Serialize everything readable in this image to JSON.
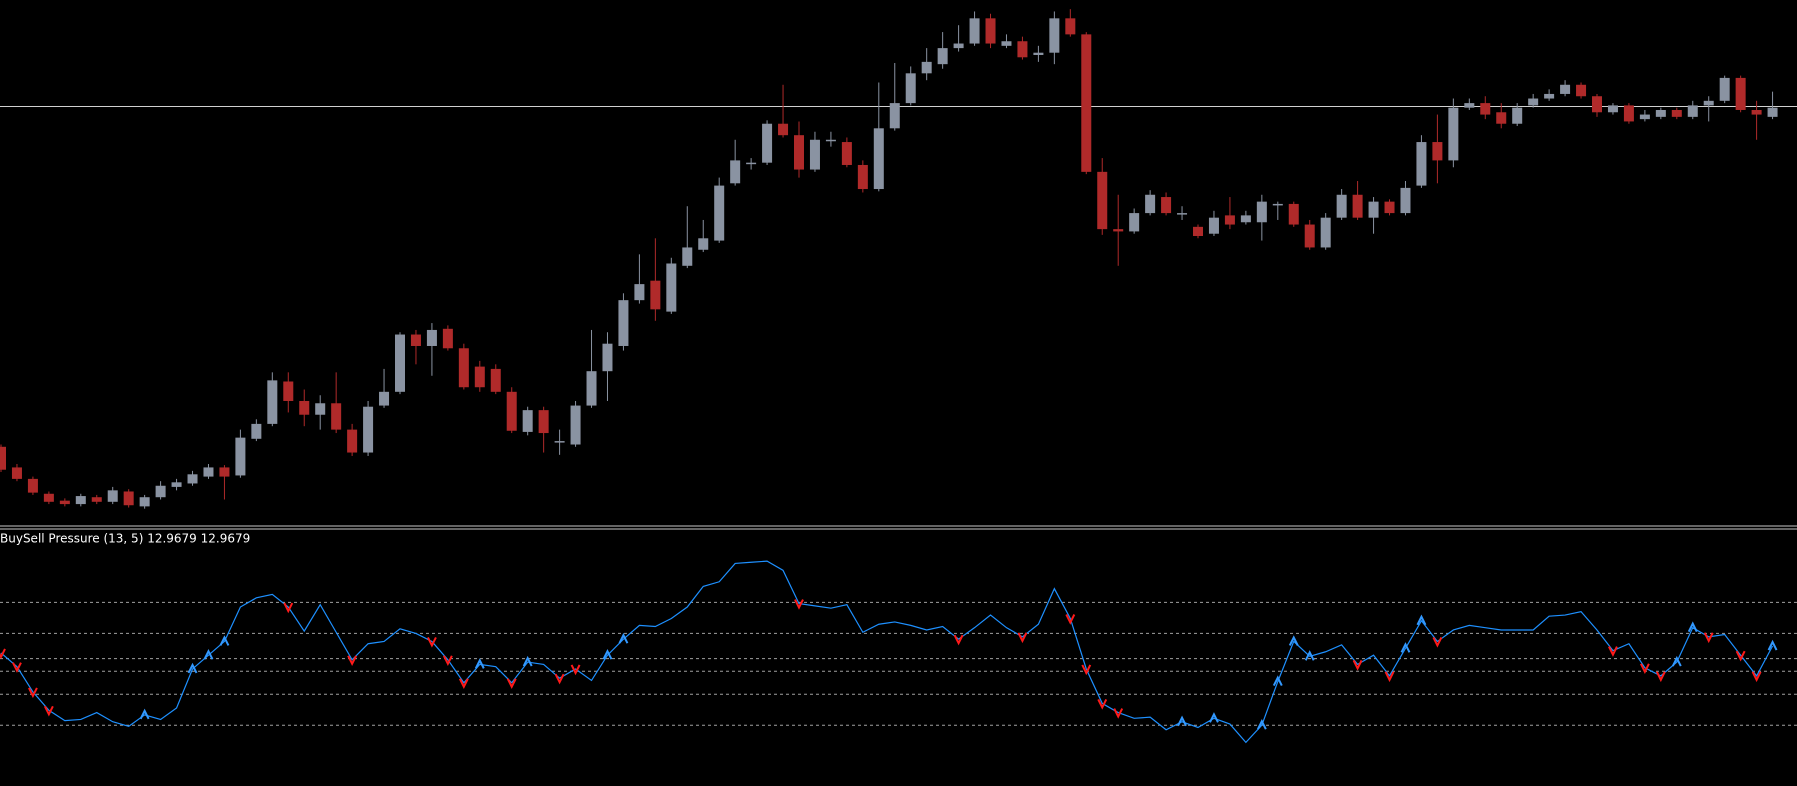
{
  "chart_data": [
    {
      "type": "candlestick",
      "open": [
        70,
        52,
        42,
        29,
        23,
        20,
        26,
        22,
        31,
        18,
        26,
        35,
        38,
        44,
        52,
        45,
        77,
        90,
        127,
        110,
        98,
        108,
        85,
        65,
        106,
        118,
        168,
        158,
        173,
        156,
        140,
        138,
        118,
        83,
        102,
        75,
        72,
        106,
        136,
        158,
        198,
        215,
        188,
        228,
        242,
        250,
        300,
        318,
        318,
        352,
        342,
        312,
        338,
        336,
        316,
        295,
        348,
        370,
        396,
        404,
        418,
        422,
        444,
        420,
        424,
        412,
        414,
        444,
        430,
        310,
        260,
        258,
        274,
        288,
        274,
        262,
        256,
        272,
        266,
        266,
        282,
        282,
        264,
        244,
        270,
        290,
        270,
        284,
        274,
        298,
        336,
        320,
        366,
        370,
        362,
        352,
        368,
        374,
        378,
        386,
        376,
        362,
        368,
        356,
        358,
        364,
        358,
        368,
        372,
        392,
        364,
        358
      ],
      "high": [
        72,
        55,
        44,
        31,
        25,
        29,
        28,
        35,
        33,
        28,
        40,
        42,
        49,
        55,
        54,
        85,
        94,
        135,
        135,
        120,
        115,
        135,
        90,
        110,
        138,
        170,
        172,
        178,
        176,
        160,
        145,
        142,
        122,
        105,
        105,
        85,
        110,
        172,
        170,
        204,
        238,
        252,
        235,
        280,
        268,
        305,
        338,
        322,
        355,
        386,
        354,
        345,
        345,
        340,
        320,
        388,
        405,
        402,
        418,
        432,
        438,
        450,
        448,
        430,
        428,
        420,
        450,
        452,
        432,
        322,
        290,
        278,
        294,
        292,
        280,
        264,
        276,
        288,
        276,
        290,
        284,
        284,
        268,
        274,
        295,
        302,
        288,
        286,
        302,
        342,
        360,
        374,
        374,
        376,
        370,
        370,
        378,
        382,
        390,
        388,
        378,
        370,
        370,
        364,
        366,
        366,
        372,
        376,
        394,
        394,
        372,
        380
      ],
      "low": [
        48,
        40,
        28,
        20,
        18,
        18,
        20,
        20,
        17,
        16,
        24,
        32,
        36,
        42,
        24,
        43,
        75,
        88,
        100,
        88,
        85,
        82,
        62,
        62,
        104,
        116,
        142,
        132,
        154,
        120,
        118,
        116,
        82,
        80,
        65,
        63,
        70,
        104,
        110,
        154,
        195,
        180,
        186,
        226,
        240,
        248,
        298,
        312,
        316,
        340,
        305,
        310,
        332,
        314,
        292,
        293,
        346,
        368,
        390,
        400,
        415,
        420,
        418,
        418,
        408,
        406,
        404,
        428,
        308,
        255,
        228,
        256,
        272,
        272,
        268,
        252,
        254,
        260,
        264,
        250,
        268,
        262,
        242,
        242,
        268,
        268,
        256,
        272,
        272,
        296,
        300,
        314,
        364,
        356,
        348,
        350,
        366,
        372,
        376,
        374,
        358,
        360,
        352,
        354,
        356,
        356,
        356,
        354,
        370,
        362,
        338,
        356
      ],
      "close": [
        50,
        42,
        30,
        22,
        20,
        27,
        22,
        32,
        19,
        26,
        36,
        39,
        46,
        52,
        44,
        78,
        90,
        128,
        110,
        98,
        108,
        85,
        65,
        105,
        118,
        168,
        158,
        172,
        156,
        122,
        122,
        118,
        84,
        102,
        82,
        75,
        106,
        136,
        160,
        198,
        212,
        190,
        230,
        244,
        252,
        298,
        320,
        318,
        352,
        342,
        312,
        338,
        338,
        316,
        295,
        348,
        370,
        396,
        406,
        418,
        422,
        444,
        422,
        424,
        410,
        414,
        444,
        430,
        310,
        260,
        258,
        274,
        290,
        274,
        274,
        254,
        270,
        264,
        272,
        284,
        282,
        264,
        244,
        270,
        290,
        270,
        284,
        274,
        296,
        336,
        320,
        366,
        370,
        360,
        352,
        366,
        374,
        378,
        386,
        376,
        362,
        368,
        354,
        360,
        364,
        358,
        368,
        372,
        392,
        364,
        360,
        366
      ],
      "up_color": "#8a93a2",
      "down_color": "#b02a2a",
      "ylim": [
        0,
        460
      ],
      "hline": 367,
      "hline_color": "#d0d0d0"
    },
    {
      "type": "line",
      "title": "BuySell Pressure (13, 5) 12.9679 12.9679",
      "series": [
        {
          "color": "#1e90ff",
          "values": [
            116,
            104,
            82,
            66,
            57,
            58,
            64,
            56,
            52,
            62,
            58,
            68,
            102,
            114,
            126,
            156,
            164,
            167,
            156,
            135,
            158,
            134,
            110,
            124,
            126,
            137,
            133,
            126,
            110,
            90,
            106,
            104,
            90,
            108,
            106,
            94,
            102,
            92,
            114,
            128,
            140,
            139,
            146,
            156,
            174,
            178,
            194,
            195,
            196,
            188,
            159,
            157,
            155,
            158,
            134,
            141,
            143,
            140,
            136,
            139,
            128,
            138,
            149,
            138,
            130,
            141,
            172,
            146,
            102,
            72,
            64,
            59,
            60,
            49,
            56,
            51,
            59,
            54,
            38,
            53,
            91,
            126,
            113,
            117,
            123,
            106,
            114,
            96,
            120,
            144,
            126,
            136,
            140,
            138,
            136,
            136,
            136,
            148,
            149,
            152,
            136,
            118,
            124,
            103,
            96,
            108,
            138,
            130,
            132,
            114,
            96,
            122
          ]
        }
      ],
      "ylim": [
        0,
        224
      ],
      "levels": [
        160,
        133,
        111,
        100,
        80,
        53
      ],
      "level_color": "#a0a0a0",
      "buy_signals": [
        9,
        12,
        13,
        14,
        30,
        33,
        38,
        39,
        74,
        76,
        79,
        80,
        81,
        82,
        88,
        89,
        105,
        106,
        111
      ],
      "buy_color": "#3399ff",
      "sell_signals": [
        0,
        1,
        2,
        3,
        18,
        22,
        27,
        28,
        29,
        32,
        35,
        36,
        50,
        60,
        64,
        67,
        68,
        69,
        70,
        85,
        87,
        90,
        101,
        103,
        104,
        107,
        109,
        110
      ],
      "sell_color": "#ff1a1a"
    }
  ]
}
